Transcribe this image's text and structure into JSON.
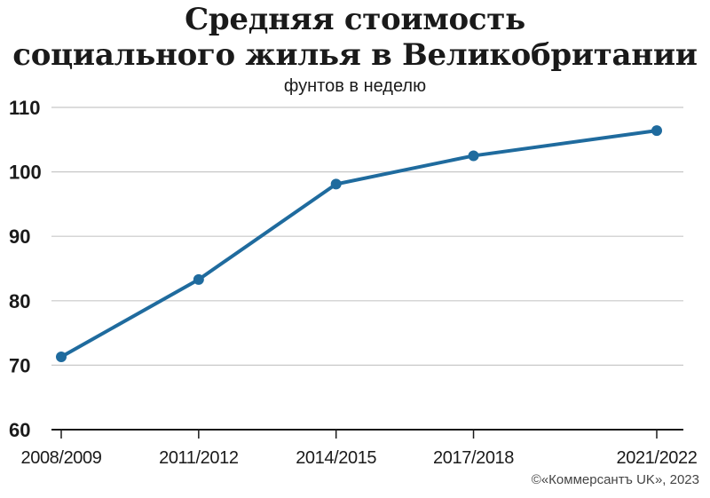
{
  "header": {
    "title_line1": "Средняя стоимость",
    "title_line2": "социального жилья в Великобритании",
    "subtitle": "фунтов в неделю"
  },
  "footer": {
    "copyright": "©«Коммерсантъ UK», 2023"
  },
  "colors": {
    "line": "#1f6b9e",
    "grid": "#c8c8c8",
    "axis": "#1a1a1a"
  },
  "chart_data": {
    "type": "line",
    "title": "Средняя стоимость социального жилья в Великобритании",
    "subtitle": "фунтов в неделю",
    "categories": [
      "2008/2009",
      "2011/2012",
      "2014/2015",
      "2017/2018",
      "2021/2022"
    ],
    "x_positions": [
      2008.5,
      2011.5,
      2014.5,
      2017.5,
      2021.5
    ],
    "series": [
      {
        "values": [
          71.3,
          83.3,
          98.1,
          102.5,
          106.4
        ]
      }
    ],
    "yticks": [
      60,
      70,
      80,
      90,
      100,
      110
    ],
    "ylim": [
      60,
      110
    ],
    "grid": true,
    "legend": "none"
  }
}
